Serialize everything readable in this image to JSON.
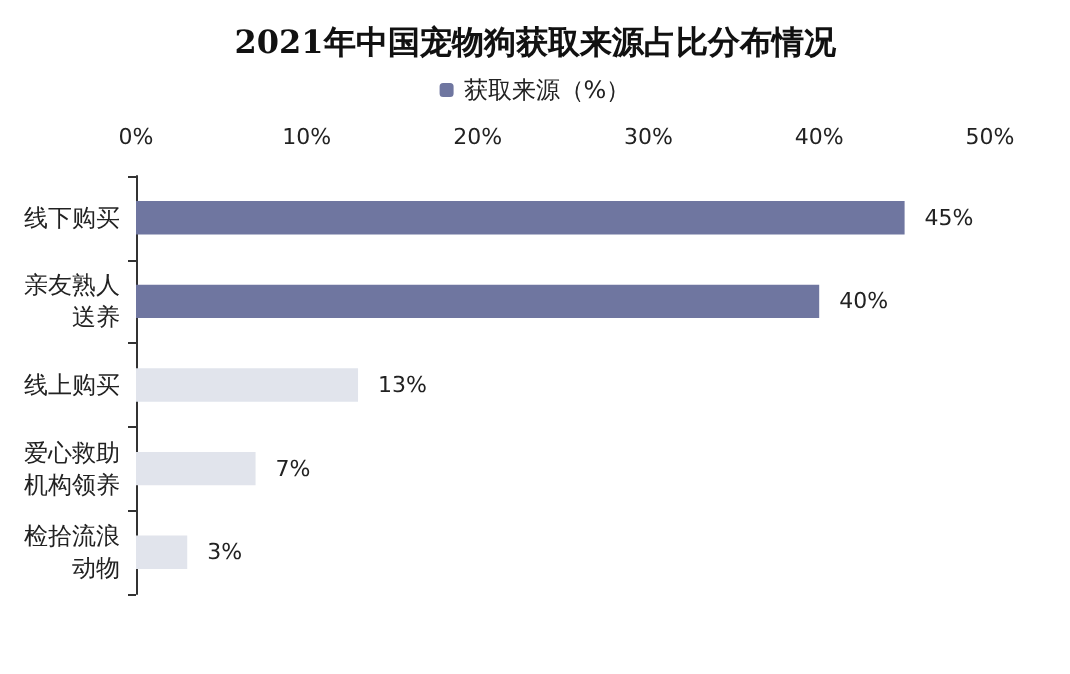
{
  "chart_data": {
    "type": "bar",
    "orientation": "horizontal",
    "title": "2021年中国宠物狗获取来源占比分布情况",
    "categories": [
      "线下购买",
      "亲友熟人送养",
      "线上购买",
      "爱心救助机构领养",
      "检拾流浪动物"
    ],
    "series": [
      {
        "name": "获取来源（%）",
        "color": "#6f76a0",
        "colors": [
          "#6f76a0",
          "#6f76a0",
          "#e1e4ec",
          "#e1e4ec",
          "#e1e4ec"
        ],
        "values": [
          45,
          40,
          13,
          7,
          3
        ],
        "value_labels": [
          "45%",
          "40%",
          "13%",
          "7%",
          "3%"
        ]
      }
    ],
    "xlim": [
      0,
      50
    ],
    "xticks": [
      {
        "value": 0,
        "label": "0%"
      },
      {
        "value": 10,
        "label": "10%"
      },
      {
        "value": 20,
        "label": "20%"
      },
      {
        "value": 30,
        "label": "30%"
      },
      {
        "value": 40,
        "label": "40%"
      },
      {
        "value": 50,
        "label": "50%"
      }
    ],
    "legend": "top",
    "grid": false
  }
}
